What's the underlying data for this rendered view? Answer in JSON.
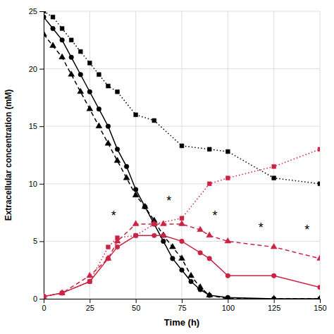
{
  "chart_data": {
    "type": "line",
    "xlabel": "Time (h)",
    "ylabel": "Extracellular concentration (mM)",
    "xlim": [
      0,
      150
    ],
    "ylim": [
      0,
      25
    ],
    "xticks": [
      0,
      25,
      50,
      75,
      100,
      125,
      150
    ],
    "yticks": [
      0,
      5,
      10,
      15,
      20,
      25
    ],
    "grid": true,
    "series": [
      {
        "color": "#000000",
        "line_style": "solid",
        "marker": "circle",
        "x": [
          0,
          5,
          10,
          15,
          20,
          25,
          30,
          35,
          40,
          45,
          50,
          55,
          60,
          65,
          70,
          75,
          80,
          85,
          90,
          100,
          125,
          150
        ],
        "values": [
          24.5,
          23.5,
          22.5,
          21.0,
          19.5,
          18.0,
          16.5,
          15.0,
          13.0,
          11.5,
          9.5,
          8.0,
          6.5,
          5.0,
          3.5,
          2.5,
          1.5,
          0.8,
          0.3,
          0.1,
          0.0,
          0.0
        ]
      },
      {
        "color": "#000000",
        "line_style": "dashed",
        "marker": "triangle",
        "x": [
          0,
          5,
          10,
          15,
          20,
          25,
          30,
          35,
          40,
          45,
          50,
          55,
          60,
          65,
          70,
          75,
          80,
          85,
          90,
          100,
          125,
          150
        ],
        "values": [
          23.0,
          22.0,
          21.0,
          19.5,
          18.0,
          16.5,
          15.0,
          13.5,
          12.0,
          10.5,
          9.0,
          8.0,
          6.8,
          5.5,
          4.5,
          3.5,
          2.0,
          1.0,
          0.3,
          0.0,
          0.0,
          0.0
        ]
      },
      {
        "color": "#000000",
        "line_style": "dotted",
        "marker": "square",
        "x": [
          0,
          5,
          10,
          15,
          20,
          25,
          30,
          35,
          40,
          50,
          60,
          75,
          90,
          100,
          125,
          150
        ],
        "values": [
          25.0,
          24.5,
          23.5,
          22.5,
          21.5,
          20.5,
          19.5,
          18.5,
          18.0,
          16.0,
          15.5,
          13.3,
          13.0,
          12.8,
          10.5,
          10.0
        ]
      },
      {
        "color": "#cc2244",
        "line_style": "solid",
        "marker": "circle",
        "x": [
          0,
          10,
          25,
          35,
          40,
          50,
          60,
          65,
          75,
          85,
          90,
          100,
          125,
          150
        ],
        "values": [
          0.2,
          0.5,
          1.5,
          3.5,
          4.5,
          5.5,
          5.5,
          5.5,
          5.0,
          4.0,
          3.5,
          2.0,
          2.0,
          1.0
        ]
      },
      {
        "color": "#cc2244",
        "line_style": "dashed",
        "marker": "triangle",
        "x": [
          0,
          10,
          25,
          35,
          40,
          50,
          60,
          65,
          75,
          85,
          90,
          100,
          125,
          150
        ],
        "values": [
          0.2,
          0.5,
          2.0,
          3.5,
          5.0,
          6.5,
          6.5,
          6.5,
          6.5,
          6.0,
          5.5,
          5.0,
          4.5,
          3.5
        ]
      },
      {
        "color": "#cc2244",
        "line_style": "dotted",
        "marker": "square",
        "x": [
          0,
          10,
          25,
          35,
          40,
          50,
          60,
          75,
          90,
          100,
          125,
          150
        ],
        "values": [
          0.2,
          0.5,
          1.5,
          4.5,
          5.3,
          5.5,
          6.5,
          7.0,
          10.0,
          10.5,
          11.5,
          13.0
        ]
      }
    ],
    "annotations": [
      {
        "text": "*",
        "x": 38,
        "y": 7.5
      },
      {
        "text": "*",
        "x": 68,
        "y": 8.8
      },
      {
        "text": "*",
        "x": 93,
        "y": 7.5
      },
      {
        "text": "*",
        "x": 118,
        "y": 6.5
      },
      {
        "text": "*",
        "x": 143,
        "y": 6.3
      }
    ]
  }
}
